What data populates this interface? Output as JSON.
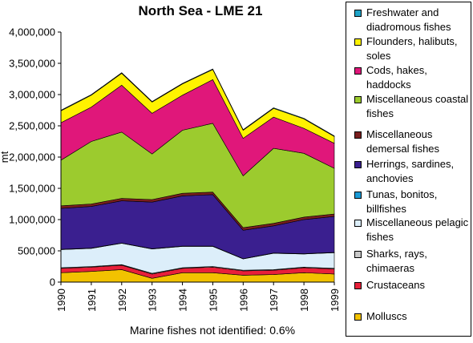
{
  "chart_data": {
    "type": "area",
    "stacked": true,
    "title": "North Sea - LME 21",
    "ylabel": "mt",
    "xlabel": "",
    "ylim": [
      0,
      4000000
    ],
    "yticks": [
      "0",
      "500,000",
      "1,000,000",
      "1,500,000",
      "2,000,000",
      "2,500,000",
      "3,000,000",
      "3,500,000",
      "4,000,000"
    ],
    "ytick_values": [
      0,
      500000,
      1000000,
      1500000,
      2000000,
      2500000,
      3000000,
      3500000,
      4000000
    ],
    "x": [
      "1990",
      "1991",
      "1992",
      "1993",
      "1994",
      "1995",
      "1996",
      "1997",
      "1998",
      "1999"
    ],
    "grid": false,
    "legend_position": "right",
    "footnote": "Marine fishes not identified: 0.6%",
    "series": [
      {
        "name": "Molluscs",
        "color": "#F2C200",
        "values": [
          150000,
          170000,
          200000,
          60000,
          150000,
          150000,
          110000,
          120000,
          150000,
          130000
        ]
      },
      {
        "name": "Crustaceans",
        "color": "#E8203A",
        "values": [
          70000,
          70000,
          70000,
          70000,
          70000,
          90000,
          70000,
          70000,
          80000,
          80000
        ]
      },
      {
        "name": "Sharks, rays, chimaeras",
        "color": "#C8C8C8",
        "values": [
          10000,
          10000,
          10000,
          10000,
          10000,
          10000,
          10000,
          10000,
          10000,
          10000
        ]
      },
      {
        "name": "Miscellaneous pelagic fishes",
        "color": "#DCEEFA",
        "values": [
          290000,
          290000,
          340000,
          390000,
          340000,
          320000,
          180000,
          260000,
          210000,
          250000
        ]
      },
      {
        "name": "Tunas, bonitos, billfishes",
        "color": "#1A9AD6",
        "values": [
          5000,
          5000,
          5000,
          5000,
          5000,
          5000,
          5000,
          5000,
          5000,
          5000
        ]
      },
      {
        "name": "Herrings, sardines, anchovies",
        "color": "#3A1F8F",
        "values": [
          655000,
          665000,
          675000,
          745000,
          805000,
          825000,
          455000,
          435000,
          545000,
          575000
        ]
      },
      {
        "name": "Miscellaneous demersal fishes",
        "color": "#7A1E1E",
        "values": [
          40000,
          40000,
          40000,
          40000,
          40000,
          40000,
          40000,
          40000,
          40000,
          40000
        ]
      },
      {
        "name": "Miscellaneous coastal fishes",
        "color": "#9CCB2E",
        "values": [
          730000,
          1000000,
          1060000,
          730000,
          1010000,
          1100000,
          830000,
          1200000,
          1020000,
          730000
        ]
      },
      {
        "name": "Cods, hakes, haddocks",
        "color": "#E0177A",
        "values": [
          600000,
          550000,
          750000,
          650000,
          560000,
          700000,
          600000,
          500000,
          400000,
          400000
        ]
      },
      {
        "name": "Flounders, halibuts, soles",
        "color": "#FFF200",
        "values": [
          190000,
          190000,
          190000,
          180000,
          180000,
          160000,
          130000,
          140000,
          150000,
          110000
        ]
      },
      {
        "name": "Freshwater and diadromous fishes",
        "color": "#1FA3C7",
        "values": [
          10000,
          10000,
          10000,
          10000,
          10000,
          10000,
          10000,
          10000,
          10000,
          10000
        ]
      }
    ]
  },
  "legend": {
    "items": [
      {
        "label": "Freshwater and diadromous fishes",
        "color": "#1FA3C7"
      },
      {
        "label": "Flounders, halibuts, soles",
        "color": "#FFF200"
      },
      {
        "label": "Cods, hakes, haddocks",
        "color": "#E0177A"
      },
      {
        "label": "Miscellaneous coastal fishes",
        "color": "#9CCB2E"
      },
      {
        "label": "Miscellaneous demersal fishes",
        "color": "#7A1E1E"
      },
      {
        "label": "Herrings, sardines, anchovies",
        "color": "#3A1F8F"
      },
      {
        "label": "Tunas, bonitos, billfishes",
        "color": "#1A9AD6"
      },
      {
        "label": "Miscellaneous pelagic fishes",
        "color": "#DCEEFA"
      },
      {
        "label": "Sharks, rays, chimaeras",
        "color": "#C8C8C8"
      },
      {
        "label": "Crustaceans",
        "color": "#E8203A"
      },
      {
        "label": "Molluscs",
        "color": "#F2C200"
      }
    ]
  }
}
